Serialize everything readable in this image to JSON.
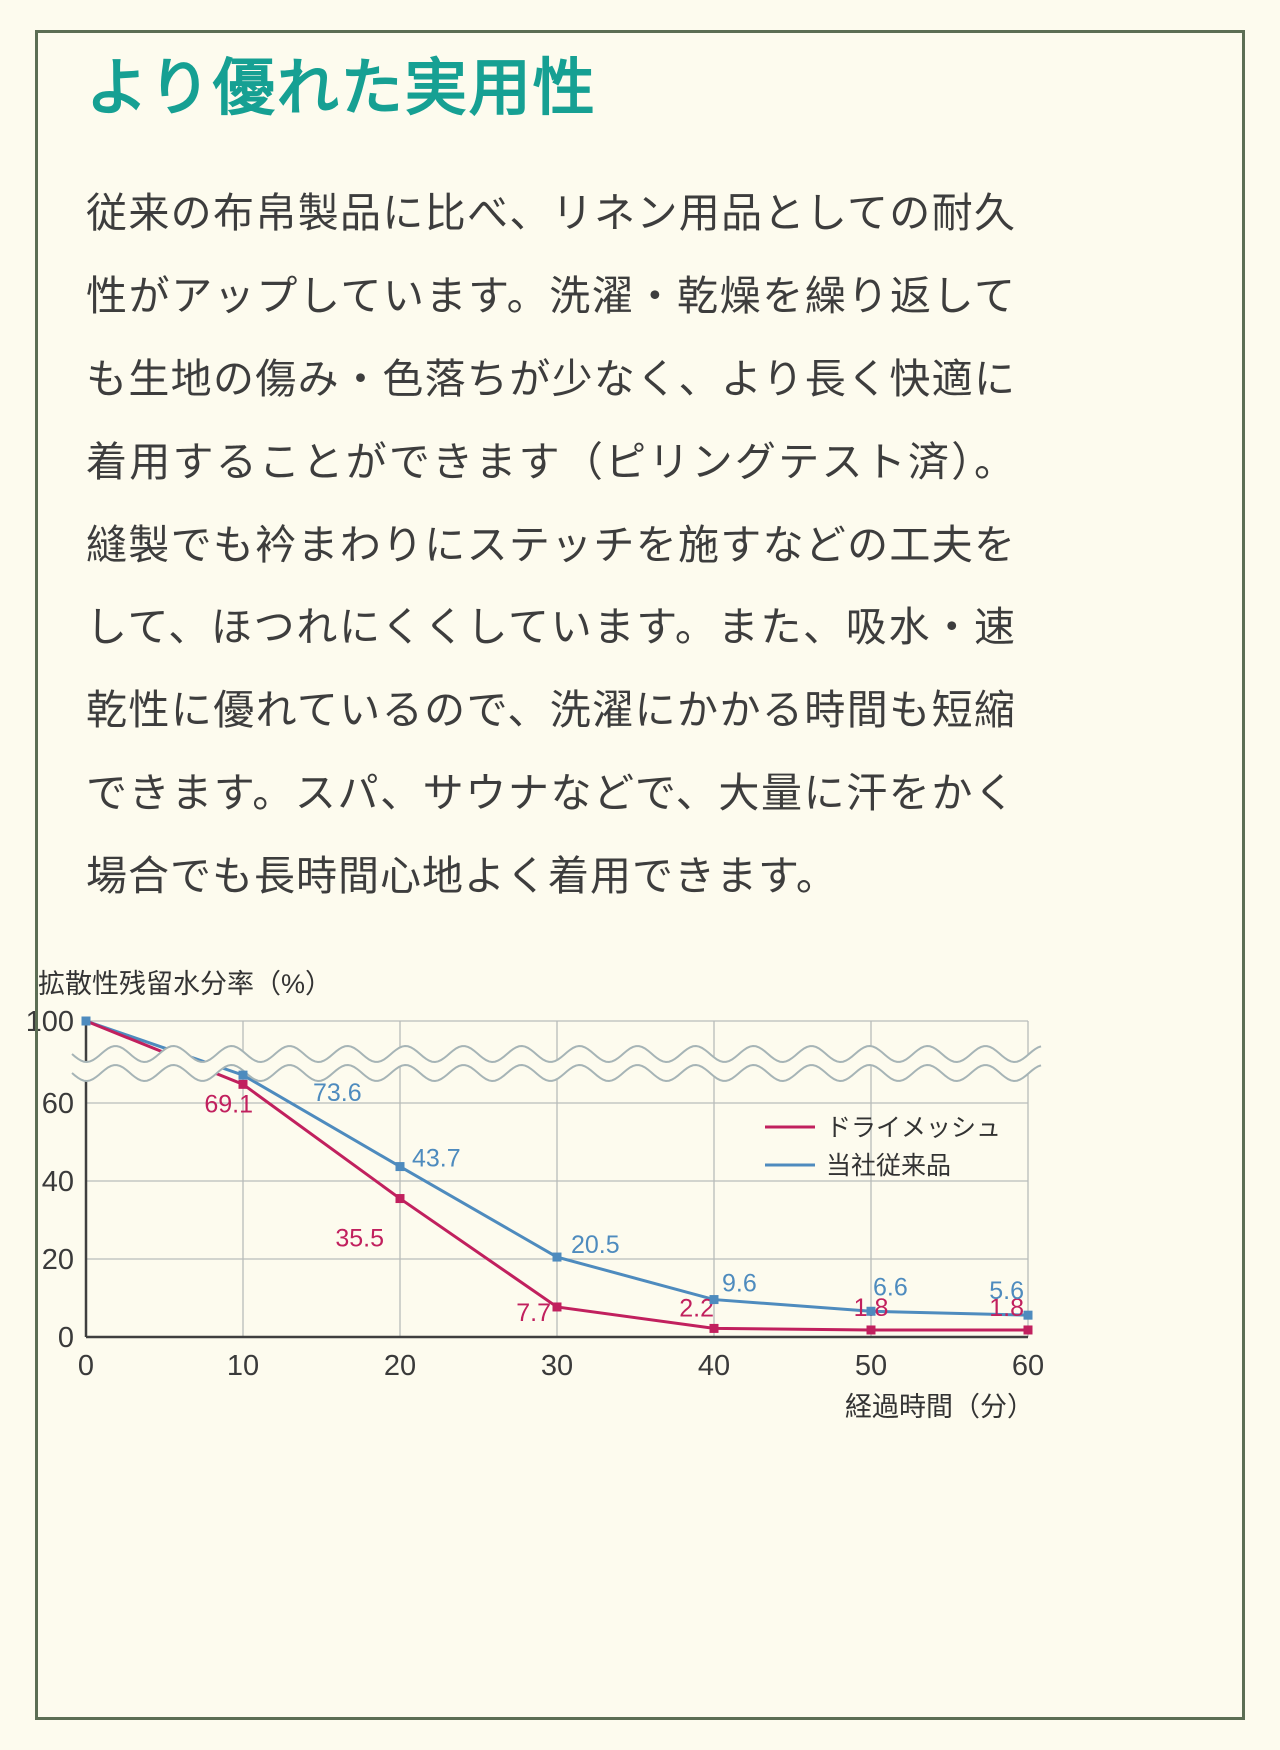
{
  "page": {
    "title": "より優れた実用性",
    "body": "従来の布帛製品に比べ、リネン用品としての耐久性がアップしています。洗濯・乾燥を繰り返しても生地の傷み・色落ちが少なく、より長く快適に着用することができます（ピリングテスト済）。縫製でも衿まわりにステッチを施すなどの工夫をして、ほつれにくくしています。また、吸水・速乾性に優れているので、洗濯にかかる時間も短縮できます。スパ、サウナなどで、大量に汗をかく場合でも長時間心地よく着用できます。",
    "colors": {
      "accent": "#16a093",
      "frame": "#5c6e54",
      "background": "#fdfbee",
      "text": "#3d3d3d"
    }
  },
  "chart_data": {
    "type": "line",
    "title": "",
    "ylabel": "拡散性残留水分率（%）",
    "xlabel": "経過時間（分）",
    "x": [
      0,
      10,
      20,
      30,
      40,
      50,
      60
    ],
    "yticks": [
      0,
      20,
      40,
      60,
      100
    ],
    "ylim": [
      0,
      100
    ],
    "axis_break": {
      "between": [
        60,
        100
      ]
    },
    "grid": true,
    "legend_position": "right-center",
    "series": [
      {
        "name": "ドライメッシュ",
        "color": "#c1205e",
        "values": [
          100,
          69.1,
          35.5,
          7.7,
          2.2,
          1.8,
          1.8
        ]
      },
      {
        "name": "当社従来品",
        "color": "#4e8bbe",
        "values": [
          100,
          73.6,
          43.7,
          20.5,
          9.6,
          6.6,
          5.6
        ]
      }
    ]
  }
}
